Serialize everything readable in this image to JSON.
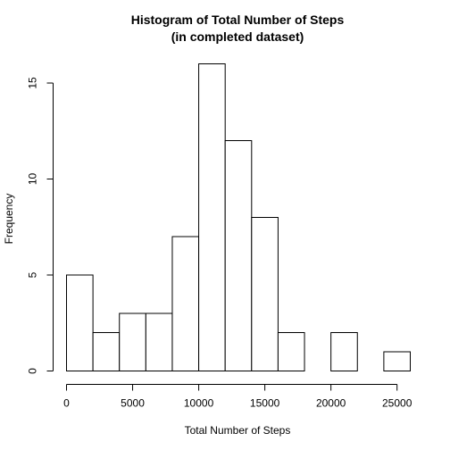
{
  "chart_data": {
    "type": "bar",
    "title": [
      "Histogram of Total Number of Steps",
      "(in completed dataset)"
    ],
    "xlabel": "Total Number of Steps",
    "ylabel": "Frequency",
    "bins": [
      {
        "start": 0,
        "end": 2000,
        "count": 5
      },
      {
        "start": 2000,
        "end": 4000,
        "count": 2
      },
      {
        "start": 4000,
        "end": 6000,
        "count": 3
      },
      {
        "start": 6000,
        "end": 8000,
        "count": 3
      },
      {
        "start": 8000,
        "end": 10000,
        "count": 7
      },
      {
        "start": 10000,
        "end": 12000,
        "count": 16
      },
      {
        "start": 12000,
        "end": 14000,
        "count": 12
      },
      {
        "start": 14000,
        "end": 16000,
        "count": 8
      },
      {
        "start": 16000,
        "end": 18000,
        "count": 2
      },
      {
        "start": 18000,
        "end": 20000,
        "count": 0
      },
      {
        "start": 20000,
        "end": 22000,
        "count": 2
      },
      {
        "start": 22000,
        "end": 24000,
        "count": 0
      },
      {
        "start": 24000,
        "end": 26000,
        "count": 1
      }
    ],
    "xlim": [
      0,
      26000
    ],
    "ylim": [
      0,
      16
    ],
    "xticks": [
      0,
      5000,
      10000,
      15000,
      20000,
      25000
    ],
    "xtick_labels": [
      "0",
      "5000",
      "10000",
      "15000",
      "20000",
      "25000"
    ],
    "yticks": [
      0,
      5,
      10,
      15
    ],
    "ytick_labels": [
      "0",
      "5",
      "10",
      "15"
    ],
    "bar_fill": "#ffffff",
    "bar_stroke": "#000000",
    "grid": false,
    "legend": "none"
  }
}
